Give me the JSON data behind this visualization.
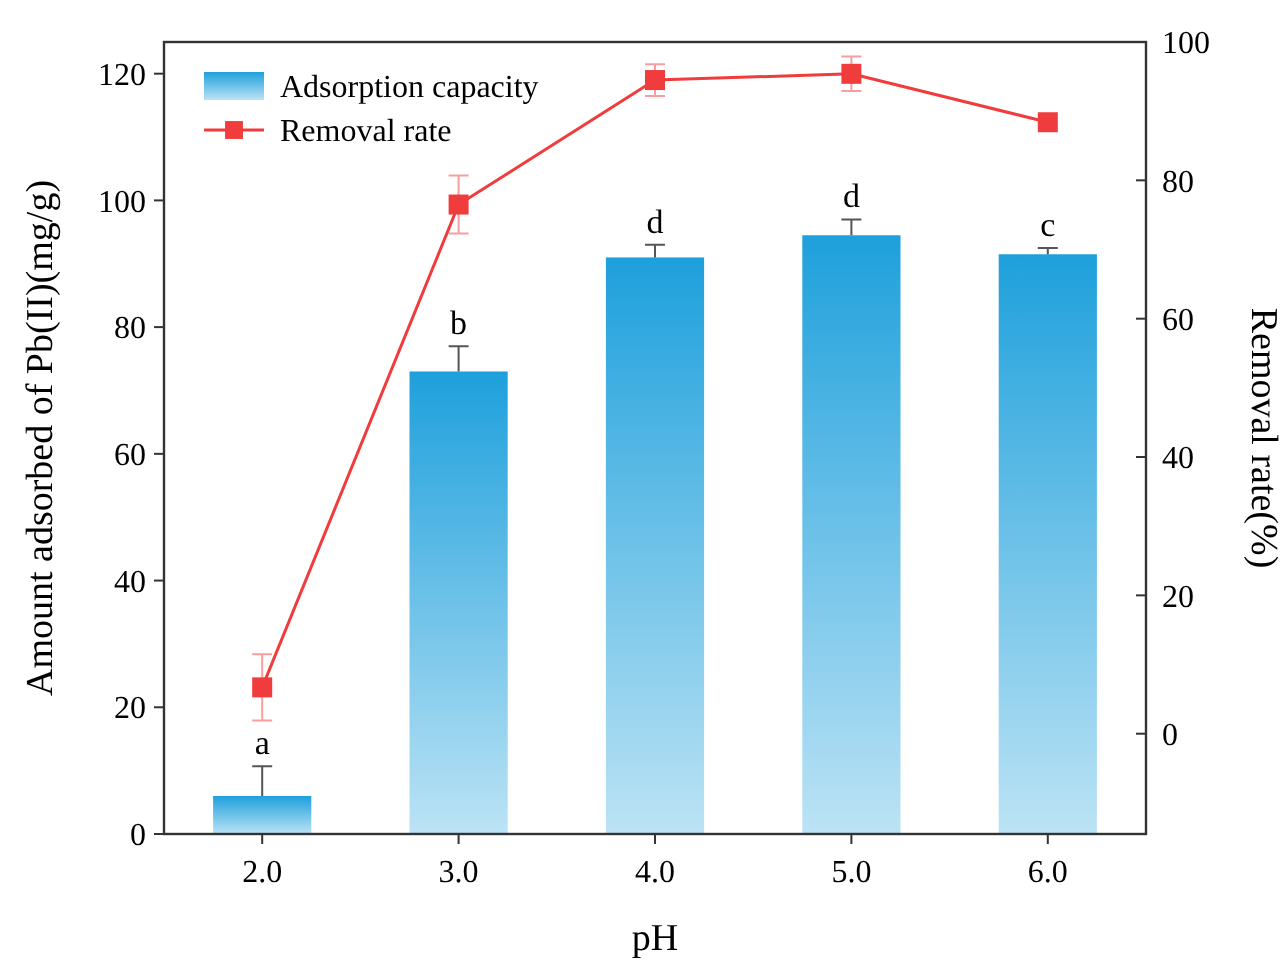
{
  "chart_data": {
    "type": "bar",
    "xlabel": "pH",
    "ylabel": "Amount adsorbed of Pb(II)(mg/g)",
    "y2label": "Removal rate(%)",
    "categories": [
      "2.0",
      "3.0",
      "4.0",
      "5.0",
      "6.0"
    ],
    "series": [
      {
        "name": "Adsorption capacity",
        "color": "#1ea0dc",
        "values": [
          6,
          73,
          91,
          94.5,
          91.5
        ],
        "errors": [
          4.7,
          4,
          2,
          2.5,
          1
        ]
      },
      {
        "name": "Removal rate",
        "type": "line",
        "axis": "y2",
        "color": "#f03c3c",
        "marker": "square",
        "values": [
          6.7,
          76.5,
          94.5,
          95.4,
          88.4
        ],
        "errors": [
          4.8,
          4.2,
          2.3,
          2.5,
          null
        ]
      }
    ],
    "annotations": [
      {
        "text": "a",
        "x": "2.0",
        "y": 10.7
      },
      {
        "text": "b",
        "x": "3.0",
        "y": 77
      },
      {
        "text": "d",
        "x": "4.0",
        "y": 93
      },
      {
        "text": "d",
        "x": "5.0",
        "y": 97
      },
      {
        "text": "c",
        "x": "6.0",
        "y": 92.5
      }
    ],
    "ylim": [
      0,
      125
    ],
    "yticks": [
      0,
      20,
      40,
      60,
      80,
      100,
      120
    ],
    "y2lim": [
      -14.5,
      100
    ],
    "y2ticks": [
      0,
      20,
      40,
      60,
      80,
      100
    ],
    "grid": false,
    "legend": "top left"
  }
}
